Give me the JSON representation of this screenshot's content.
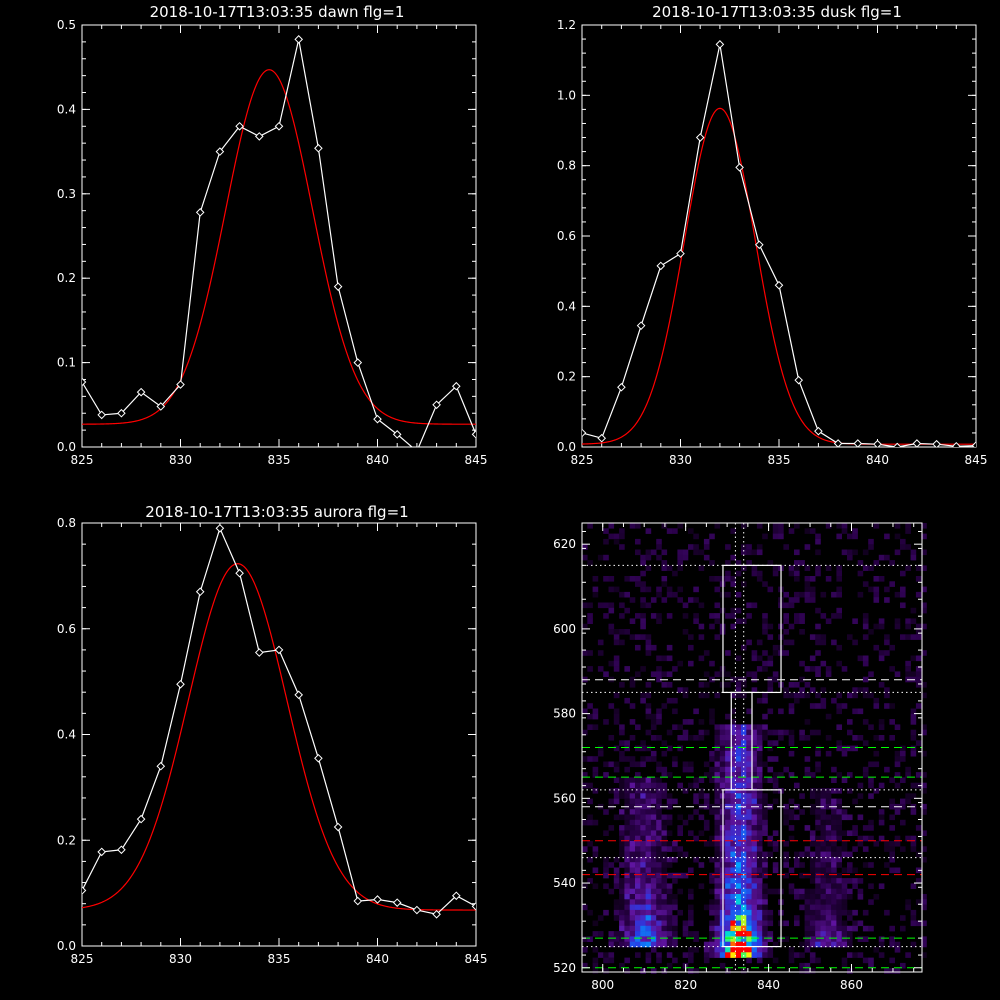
{
  "colors": {
    "background": "#000000",
    "axes": "#ffffff",
    "data_line": "#ffffff",
    "fit_line": "#ff0000",
    "guide_white": "#ffffff",
    "guide_green": "#00ff00",
    "guide_red": "#ff0000"
  },
  "chart_data": [
    {
      "type": "line",
      "title": "2018-10-17T13:03:35 dawn flg=1",
      "xlim": [
        825,
        845
      ],
      "ylim": [
        0,
        0.5
      ],
      "x_ticks": [
        "825",
        "830",
        "835",
        "840",
        "845"
      ],
      "y_ticks": [
        "0.0",
        "0.1",
        "0.2",
        "0.3",
        "0.4",
        "0.5"
      ],
      "series": [
        {
          "x": [
            825,
            826,
            827,
            828,
            829,
            830,
            831,
            832,
            833,
            834,
            835,
            836,
            837,
            838,
            839,
            840,
            841,
            842,
            843,
            844,
            845
          ],
          "values": [
            0.077,
            0.038,
            0.04,
            0.065,
            0.048,
            0.074,
            0.278,
            0.35,
            0.38,
            0.368,
            0.38,
            0.483,
            0.354,
            0.19,
            0.1,
            0.033,
            0.015,
            -0.005,
            0.05,
            0.072,
            0.015
          ],
          "markers": "diamond"
        },
        {
          "fit": {
            "amplitude": 0.42,
            "center": 834.5,
            "sigma": 2.2,
            "baseline": 0.027
          }
        }
      ]
    },
    {
      "type": "line",
      "title": "2018-10-17T13:03:35 dusk flg=1",
      "xlim": [
        825,
        845
      ],
      "ylim": [
        0,
        1.2
      ],
      "x_ticks": [
        "825",
        "830",
        "835",
        "840",
        "845"
      ],
      "y_ticks": [
        "0.0",
        "0.2",
        "0.4",
        "0.6",
        "0.8",
        "1.0",
        "1.2"
      ],
      "series": [
        {
          "x": [
            825,
            826,
            827,
            828,
            829,
            830,
            831,
            832,
            833,
            834,
            835,
            836,
            837,
            838,
            839,
            840,
            841,
            842,
            843,
            844,
            845
          ],
          "values": [
            0.04,
            0.025,
            0.17,
            0.345,
            0.515,
            0.55,
            0.88,
            1.145,
            0.795,
            0.575,
            0.46,
            0.19,
            0.045,
            0.01,
            0.01,
            0.008,
            0.0,
            0.01,
            0.008,
            0.002,
            0.004
          ],
          "markers": "diamond"
        },
        {
          "fit": {
            "amplitude": 0.955,
            "center": 832.0,
            "sigma": 1.8,
            "baseline": 0.008
          }
        }
      ]
    },
    {
      "type": "line",
      "title": "2018-10-17T13:03:35 aurora flg=1",
      "xlim": [
        825,
        845
      ],
      "ylim": [
        0,
        0.8
      ],
      "x_ticks": [
        "825",
        "830",
        "835",
        "840",
        "845"
      ],
      "y_ticks": [
        "0.0",
        "0.2",
        "0.4",
        "0.6",
        "0.8"
      ],
      "series": [
        {
          "x": [
            825,
            826,
            827,
            828,
            829,
            830,
            831,
            832,
            833,
            834,
            835,
            836,
            837,
            838,
            839,
            840,
            841,
            842,
            843,
            844,
            845
          ],
          "values": [
            0.105,
            0.178,
            0.182,
            0.24,
            0.34,
            0.495,
            0.67,
            0.79,
            0.705,
            0.555,
            0.56,
            0.475,
            0.355,
            0.225,
            0.085,
            0.088,
            0.082,
            0.068,
            0.06,
            0.095,
            0.075
          ],
          "markers": "diamond"
        },
        {
          "fit": {
            "amplitude": 0.655,
            "center": 832.9,
            "sigma": 2.5,
            "baseline": 0.068
          }
        }
      ]
    },
    {
      "type": "heatmap",
      "title": "",
      "xlim": [
        795,
        877
      ],
      "ylim": [
        519,
        625
      ],
      "x_ticks": [
        "800",
        "820",
        "840",
        "860"
      ],
      "y_ticks": [
        "520",
        "540",
        "560",
        "580",
        "600",
        "620"
      ],
      "bands": [
        {
          "x_center": 810,
          "y_start": 527,
          "y_end": 562,
          "peak_y": 528,
          "strength": 0.45
        },
        {
          "x_center": 833,
          "y_start": 524,
          "y_end": 575,
          "peak_y": 527,
          "strength": 1.0
        },
        {
          "x_center": 854,
          "y_start": 527,
          "y_end": 560,
          "peak_y": 528,
          "strength": 0.22
        }
      ],
      "boxes": [
        {
          "x": [
            829,
            843
          ],
          "y": [
            585,
            615
          ]
        },
        {
          "x": [
            831,
            836
          ],
          "y": [
            562,
            585
          ]
        },
        {
          "x": [
            829,
            843
          ],
          "y": [
            525,
            562
          ]
        }
      ],
      "vertical_lines": [
        {
          "x": 832,
          "style": "dotted",
          "color": "white"
        },
        {
          "x": 834,
          "style": "dotted",
          "color": "white"
        }
      ],
      "horizontal_lines": [
        {
          "y": 615,
          "style": "dotted",
          "color": "white"
        },
        {
          "y": 588,
          "style": "dashed",
          "color": "white"
        },
        {
          "y": 585,
          "style": "dotted",
          "color": "white"
        },
        {
          "y": 572,
          "style": "dashed",
          "color": "green"
        },
        {
          "y": 565,
          "style": "dashed",
          "color": "green"
        },
        {
          "y": 562,
          "style": "dotted",
          "color": "white"
        },
        {
          "y": 558,
          "style": "dashed",
          "color": "white"
        },
        {
          "y": 550,
          "style": "dashed",
          "color": "red"
        },
        {
          "y": 546,
          "style": "dotted",
          "color": "white"
        },
        {
          "y": 542,
          "style": "dashed",
          "color": "red"
        },
        {
          "y": 527,
          "style": "dashed",
          "color": "green"
        },
        {
          "y": 525,
          "style": "dotted",
          "color": "white"
        },
        {
          "y": 520,
          "style": "dashed",
          "color": "green"
        }
      ]
    }
  ]
}
